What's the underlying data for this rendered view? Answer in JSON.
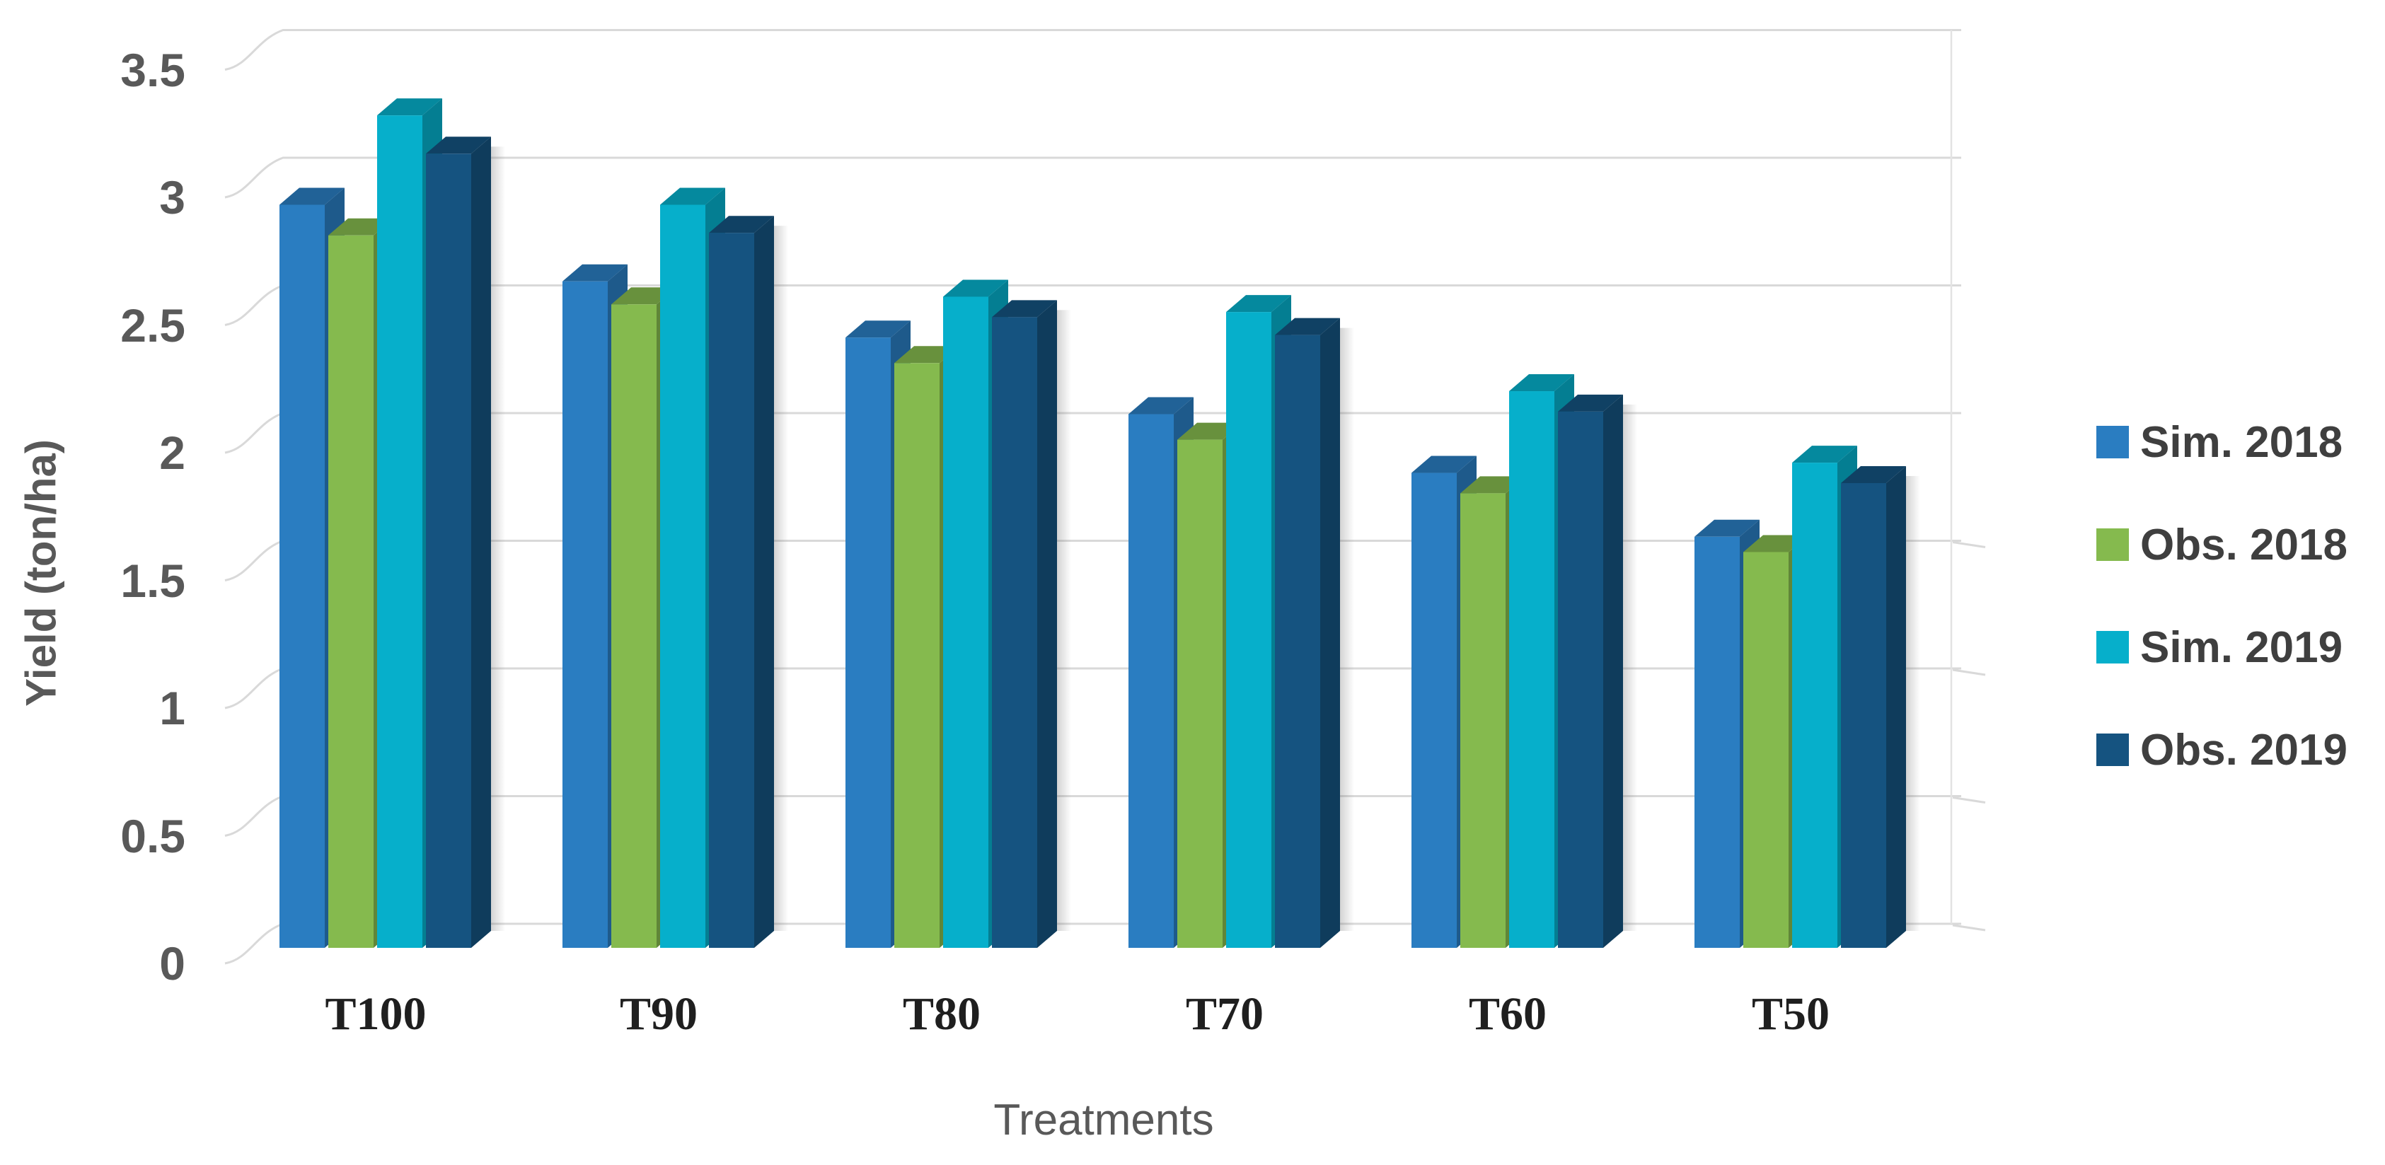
{
  "chart_data": {
    "type": "bar",
    "variant": "3d-clustered-column",
    "title": "",
    "xlabel": "Treatments",
    "ylabel": "Yield (ton/ha)",
    "categories": [
      "T100",
      "T90",
      "T80",
      "T70",
      "T60",
      "T50"
    ],
    "series": [
      {
        "name": "Sim. 2018",
        "color": "#2A7DC1",
        "values": [
          2.91,
          2.61,
          2.39,
          2.09,
          1.86,
          1.61
        ]
      },
      {
        "name": "Obs. 2018",
        "color": "#85BA4E",
        "values": [
          2.79,
          2.52,
          2.29,
          1.99,
          1.78,
          1.55
        ]
      },
      {
        "name": "Sim. 2019",
        "color": "#06AFCB",
        "values": [
          3.26,
          2.91,
          2.55,
          2.49,
          2.18,
          1.9
        ]
      },
      {
        "name": "Obs. 2019",
        "color": "#155380",
        "values": [
          3.11,
          2.8,
          2.47,
          2.4,
          2.1,
          1.82
        ]
      }
    ],
    "ylim": [
      0,
      3.5
    ],
    "ytick_step": 0.5,
    "ytick_labels": [
      "0",
      "0.5",
      "1",
      "1.5",
      "2",
      "2.5",
      "3",
      "3.5"
    ],
    "grid": true,
    "legend_position": "right"
  },
  "style": {
    "background": "#FFFFFF",
    "gridline_color": "#D9D9D9",
    "axis_text_color": "#595959",
    "category_text_color": "#1F1F1F",
    "legend_text_color": "#3F3F3F"
  }
}
